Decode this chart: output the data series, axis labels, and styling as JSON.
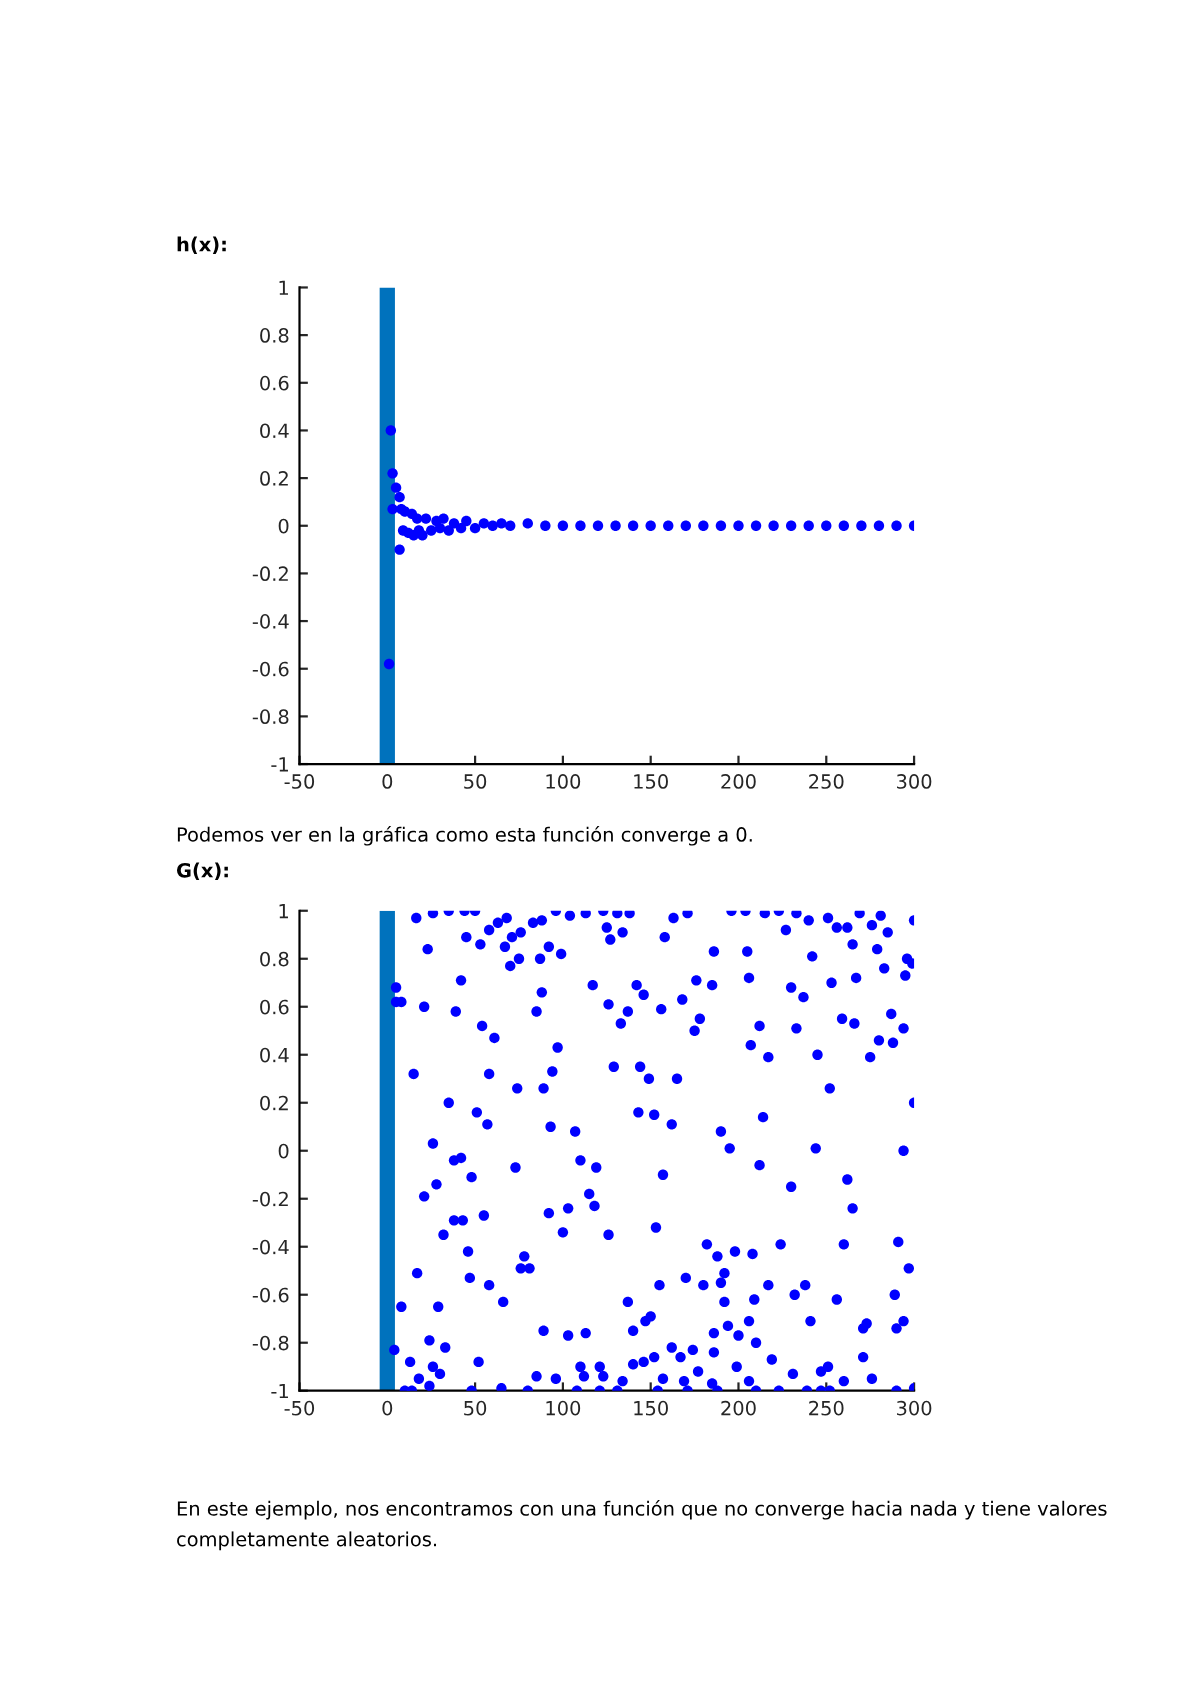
{
  "chart_data": [
    {
      "type": "scatter",
      "title": "h(x):",
      "annotations": [
        "Podemos ver en la gráfica como esta función converge a 0."
      ],
      "xlim": [
        -50,
        300
      ],
      "xticks": [
        -50,
        0,
        50,
        100,
        150,
        200,
        250,
        300
      ],
      "ylim": [
        -1,
        1
      ],
      "yticks": [
        -1,
        -0.8,
        -0.6,
        -0.4,
        -0.2,
        0,
        0.2,
        0.4,
        0.6,
        0.8,
        1
      ],
      "grid": false,
      "marker": "circle",
      "series": [
        {
          "type": "line",
          "marker": "none",
          "color": "#0072bd",
          "x": [
            0,
            0
          ],
          "values": [
            -1,
            1
          ]
        },
        {
          "color": "#0000ff",
          "x": [
            1,
            2,
            3,
            3,
            5,
            7,
            7,
            8,
            9,
            10,
            12,
            14,
            15,
            17,
            18,
            20,
            22,
            25,
            28,
            30,
            32,
            35,
            38,
            42,
            45,
            50,
            55,
            60,
            65,
            70,
            80,
            90,
            100,
            110,
            120,
            130,
            140,
            150,
            160,
            170,
            180,
            190,
            200,
            210,
            220,
            230,
            240,
            250,
            260,
            270,
            280,
            290,
            300
          ],
          "values": [
            -0.58,
            0.4,
            0.22,
            0.07,
            0.16,
            0.12,
            -0.1,
            0.07,
            -0.02,
            0.06,
            -0.03,
            0.05,
            -0.04,
            0.03,
            -0.02,
            -0.04,
            0.03,
            -0.02,
            0.02,
            -0.01,
            0.03,
            -0.02,
            0.01,
            -0.01,
            0.02,
            -0.01,
            0.01,
            0,
            0.01,
            0,
            0.01,
            0,
            0,
            0,
            0,
            0,
            0,
            0,
            0,
            0,
            0,
            0,
            0,
            0,
            0,
            0,
            0,
            0,
            0,
            0,
            0,
            0,
            0
          ]
        }
      ]
    },
    {
      "type": "scatter",
      "title": "G(x):",
      "annotations": [
        "En este ejemplo, nos encontramos con una función que no converge hacia nada y tiene valores completamente aleatorios."
      ],
      "xlim": [
        -50,
        300
      ],
      "xticks": [
        -50,
        0,
        50,
        100,
        150,
        200,
        250,
        300
      ],
      "ylim": [
        -1,
        1
      ],
      "yticks": [
        -1,
        -0.8,
        -0.6,
        -0.4,
        -0.2,
        0,
        0.2,
        0.4,
        0.6,
        0.8,
        1
      ],
      "grid": false,
      "marker": "circle",
      "series": [
        {
          "type": "line",
          "marker": "none",
          "color": "#0072bd",
          "x": [
            0,
            0
          ],
          "values": [
            -1,
            1
          ]
        },
        {
          "color": "#0000ff",
          "x": [
            16.5,
            26,
            35,
            44,
            50,
            45,
            53,
            58,
            63,
            68,
            67,
            71,
            76,
            83,
            88,
            70,
            75,
            87,
            92,
            99,
            96,
            104,
            113,
            123,
            131,
            138,
            125,
            134,
            127,
            158,
            163,
            171,
            186,
            196,
            204,
            215,
            223,
            233,
            240,
            227,
            205,
            242,
            251,
            256,
            262,
            265,
            269,
            276,
            281,
            285,
            279,
            283,
            295,
            296,
            299,
            300,
            23,
            42,
            21,
            5,
            5,
            8,
            39,
            54,
            61,
            88,
            85,
            117,
            126,
            133,
            137,
            142,
            146,
            156,
            168,
            175,
            178,
            176,
            185,
            206,
            212,
            207,
            217,
            230,
            237,
            233,
            245,
            253,
            259,
            266,
            267,
            275,
            280,
            288,
            287,
            294,
            15,
            58,
            94,
            97,
            129,
            144,
            149,
            74,
            89,
            165,
            252,
            35,
            51,
            57,
            93,
            107,
            143,
            152,
            162,
            190,
            214,
            300,
            26,
            195,
            244,
            294,
            38,
            42,
            73,
            48,
            110,
            119,
            157,
            212,
            21,
            28,
            115,
            118,
            103,
            92,
            55,
            38,
            43,
            32,
            100,
            126,
            153,
            230,
            262,
            265,
            46,
            78,
            76,
            81,
            17,
            47,
            58,
            66,
            8,
            29,
            137,
            155,
            170,
            182,
            188,
            198,
            208,
            192,
            190,
            180,
            192,
            209,
            217,
            224,
            232,
            238,
            260,
            256,
            291,
            297,
            289,
            150,
            147,
            140,
            113,
            103,
            89,
            194,
            186,
            206,
            200,
            210,
            241,
            273,
            271,
            290,
            294,
            4,
            24,
            33,
            146,
            152,
            162,
            167,
            174,
            186,
            219,
            231,
            247,
            251,
            271,
            276,
            13,
            26,
            18,
            30,
            52,
            85,
            96,
            110,
            112,
            121,
            123,
            134,
            140,
            157,
            169,
            177,
            185,
            199,
            206,
            223,
            239,
            252,
            260,
            290,
            300,
            10,
            14,
            24,
            48,
            65,
            80,
            108,
            121,
            131,
            154,
            171,
            188,
            210,
            247
          ],
          "values": [
            0.97,
            0.99,
            1,
            1,
            1,
            0.89,
            0.86,
            0.92,
            0.95,
            0.97,
            0.85,
            0.89,
            0.91,
            0.95,
            0.96,
            0.77,
            0.8,
            0.8,
            0.85,
            0.82,
            1,
            0.98,
            0.99,
            1,
            0.99,
            0.99,
            0.93,
            0.91,
            0.88,
            0.89,
            0.97,
            0.99,
            0.83,
            1,
            1,
            0.99,
            1,
            0.99,
            0.96,
            0.92,
            0.83,
            0.81,
            0.97,
            0.93,
            0.93,
            0.86,
            0.99,
            0.94,
            0.98,
            0.91,
            0.84,
            0.76,
            0.73,
            0.8,
            0.78,
            0.96,
            0.84,
            0.71,
            0.6,
            0.68,
            0.62,
            0.62,
            0.58,
            0.52,
            0.47,
            0.66,
            0.58,
            0.69,
            0.61,
            0.53,
            0.58,
            0.69,
            0.65,
            0.59,
            0.63,
            0.5,
            0.55,
            0.71,
            0.69,
            0.72,
            0.52,
            0.44,
            0.39,
            0.68,
            0.64,
            0.51,
            0.4,
            0.7,
            0.55,
            0.53,
            0.72,
            0.39,
            0.46,
            0.45,
            0.57,
            0.51,
            0.32,
            0.32,
            0.33,
            0.43,
            0.35,
            0.35,
            0.3,
            0.26,
            0.26,
            0.3,
            0.26,
            0.2,
            0.16,
            0.11,
            0.1,
            0.08,
            0.16,
            0.15,
            0.11,
            0.08,
            0.14,
            0.2,
            0.03,
            0.01,
            0.01,
            0,
            -0.04,
            -0.03,
            -0.07,
            -0.11,
            -0.04,
            -0.07,
            -0.1,
            -0.06,
            -0.19,
            -0.14,
            -0.18,
            -0.23,
            -0.24,
            -0.26,
            -0.27,
            -0.29,
            -0.29,
            -0.35,
            -0.34,
            -0.35,
            -0.32,
            -0.15,
            -0.12,
            -0.24,
            -0.42,
            -0.44,
            -0.49,
            -0.49,
            -0.51,
            -0.53,
            -0.56,
            -0.63,
            -0.65,
            -0.65,
            -0.63,
            -0.56,
            -0.53,
            -0.39,
            -0.44,
            -0.42,
            -0.43,
            -0.51,
            -0.55,
            -0.56,
            -0.63,
            -0.62,
            -0.56,
            -0.39,
            -0.6,
            -0.56,
            -0.39,
            -0.62,
            -0.38,
            -0.49,
            -0.6,
            -0.69,
            -0.71,
            -0.75,
            -0.76,
            -0.77,
            -0.75,
            -0.73,
            -0.76,
            -0.71,
            -0.77,
            -0.8,
            -0.71,
            -0.72,
            -0.74,
            -0.74,
            -0.71,
            -0.83,
            -0.79,
            -0.82,
            -0.88,
            -0.86,
            -0.82,
            -0.86,
            -0.83,
            -0.84,
            -0.87,
            -0.93,
            -0.92,
            -0.9,
            -0.86,
            -0.95,
            -0.88,
            -0.9,
            -0.95,
            -0.93,
            -0.88,
            -0.94,
            -0.95,
            -0.9,
            -0.94,
            -0.9,
            -0.94,
            -0.96,
            -0.89,
            -0.95,
            -0.96,
            -0.92,
            -0.97,
            -0.9,
            -0.96,
            -1,
            -1,
            -1,
            -0.96,
            -1,
            -0.99,
            -1,
            -1,
            -0.98,
            -1,
            -0.99,
            -1,
            -1,
            -1,
            -1,
            -1,
            -1,
            -1,
            -1,
            -1
          ]
        }
      ]
    }
  ]
}
